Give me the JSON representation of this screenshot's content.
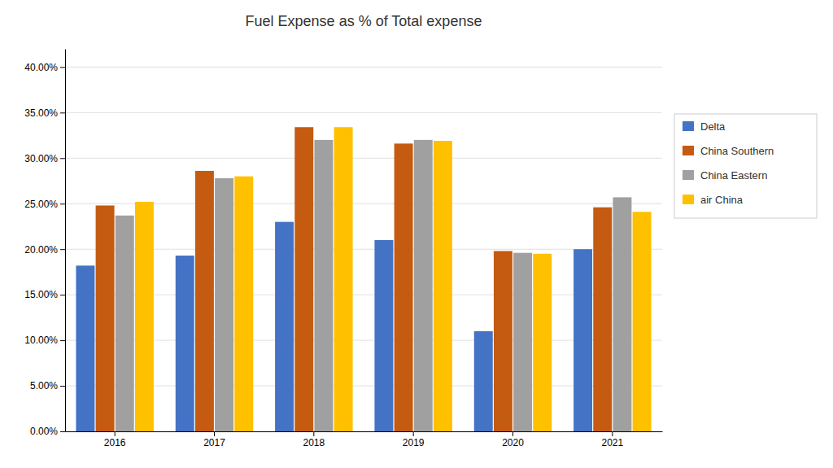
{
  "chart_data": {
    "type": "bar",
    "title": "Fuel Expense as % of Total expense",
    "categories": [
      "2016",
      "2017",
      "2018",
      "2019",
      "2020",
      "2021"
    ],
    "series": [
      {
        "name": "Delta",
        "color": "#4472C4",
        "values": [
          0.182,
          0.193,
          0.23,
          0.21,
          0.11,
          0.2
        ]
      },
      {
        "name": "China Southern",
        "color": "#C55A11",
        "values": [
          0.248,
          0.286,
          0.334,
          0.316,
          0.198,
          0.246
        ]
      },
      {
        "name": "China Eastern",
        "color": "#A0A0A0",
        "values": [
          0.237,
          0.278,
          0.32,
          0.32,
          0.196,
          0.257
        ]
      },
      {
        "name": "air China",
        "color": "#FFC000",
        "values": [
          0.252,
          0.28,
          0.334,
          0.319,
          0.195,
          0.241
        ]
      }
    ],
    "ylim": [
      0,
      0.42
    ],
    "yticks": [
      {
        "value": 0.0,
        "label": "0.00%"
      },
      {
        "value": 0.05,
        "label": "5.00%"
      },
      {
        "value": 0.1,
        "label": "10.00%"
      },
      {
        "value": 0.15,
        "label": "15.00%"
      },
      {
        "value": 0.2,
        "label": "20.00%"
      },
      {
        "value": 0.25,
        "label": "25.00%"
      },
      {
        "value": 0.3,
        "label": "30.00%"
      },
      {
        "value": 0.35,
        "label": "35.00%"
      },
      {
        "value": 0.4,
        "label": "40.00%"
      }
    ],
    "grid": true,
    "legend": "right"
  }
}
